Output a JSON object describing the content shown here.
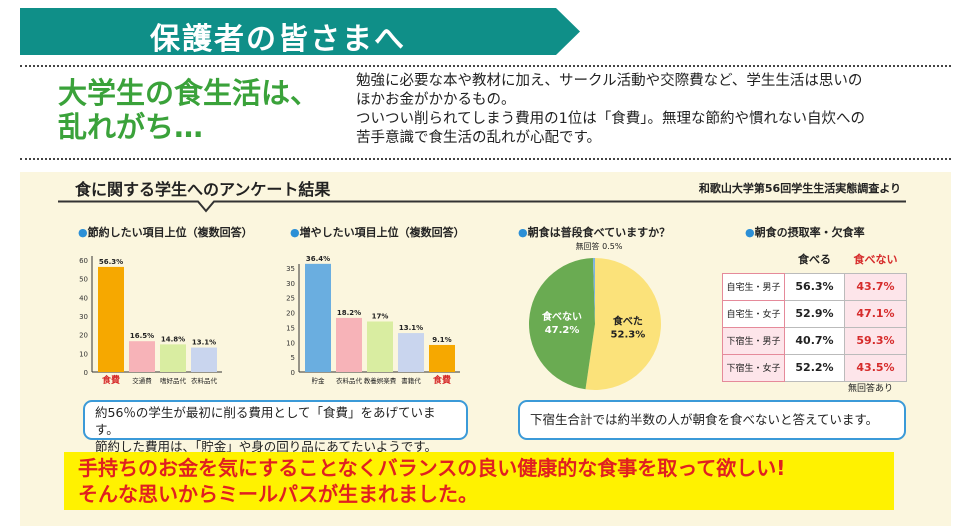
{
  "banner": {
    "title": "保護者の皆さまへ",
    "color": "#0f8f88"
  },
  "headline": {
    "line1": "大学生の食生活は、",
    "line2": "乱れがち…"
  },
  "intro": {
    "line1": "勉強に必要な本や教材に加え、サークル活動や交際費など、学生生活は思いの",
    "line2": "ほかお金がかかるもの。",
    "line3": "ついつい削られてしまう費用の1位は「食費」。無理な節約や慣れない自炊への",
    "line4": "苦手意識で食生活の乱れが心配です。"
  },
  "survey": {
    "title": "食に関する学生へのアンケート結果",
    "source": "和歌山大学第56回学生生活実態調査より"
  },
  "chart_data": [
    {
      "type": "bar",
      "title": "節約したい項目上位（複数回答）",
      "categories": [
        "食費",
        "交通費",
        "嗜好品代",
        "衣料品代"
      ],
      "values": [
        56.3,
        16.5,
        14.8,
        13.1
      ],
      "value_labels": [
        "56.3%",
        "16.5%",
        "14.8%",
        "13.1%"
      ],
      "ylim": [
        0,
        60
      ],
      "yticks": [
        "0",
        "10",
        "20",
        "30",
        "40",
        "50",
        "60"
      ],
      "colors": [
        "#f6a800",
        "#f7b3b8",
        "#d9eda1",
        "#c9d5ee"
      ]
    },
    {
      "type": "bar",
      "title": "増やしたい項目上位（複数回答）",
      "categories": [
        "貯金",
        "衣料品代",
        "教養娯楽費",
        "書籍代",
        "食費"
      ],
      "values": [
        36.4,
        18.2,
        17,
        13.1,
        9.1
      ],
      "value_labels": [
        "36.4%",
        "18.2%",
        "17%",
        "13.1%",
        "9.1%"
      ],
      "ylim": [
        0,
        35
      ],
      "yticks": [
        "0",
        "5",
        "10",
        "15",
        "20",
        "25",
        "30",
        "35"
      ],
      "colors": [
        "#6aaee0",
        "#f7b3b8",
        "#d9eda1",
        "#c9d5ee",
        "#f6a800"
      ]
    },
    {
      "type": "pie",
      "title": "朝食は普段食べていますか？",
      "slices": [
        {
          "label": "食べた",
          "value": 52.3,
          "value_label": "52.3%",
          "color": "#fbe27a"
        },
        {
          "label": "食べない",
          "value": 47.2,
          "value_label": "47.2%",
          "color": "#6aab52"
        },
        {
          "label": "無回答",
          "value": 0.5,
          "value_label": "0.5%",
          "color": "#7fb2e0"
        }
      ]
    },
    {
      "type": "table",
      "title": "朝食の摂取率・欠食率",
      "columns": [
        "",
        "食べる",
        "食べない"
      ],
      "rows": [
        [
          "自宅生・男子",
          "56.3%",
          "43.7%"
        ],
        [
          "自宅生・女子",
          "52.9%",
          "47.1%"
        ],
        [
          "下宿生・男子",
          "40.7%",
          "59.3%"
        ],
        [
          "下宿生・女子",
          "52.2%",
          "43.5%"
        ]
      ],
      "footnote": "無回答あり"
    }
  ],
  "notes": {
    "left_line1": "約56％の学生が最初に削る費用として「食費」をあげています。",
    "left_line2": "節約した費用は、「貯金」や身の回り品にあてたいようです。",
    "right": "下宿生合計では約半数の人が朝食を食べないと答えています。"
  },
  "message": {
    "line1": "手持ちのお金を気にすることなくバランスの良い健康的な食事を取って欲しい!",
    "line2": "そんな思いからミールパスが生まれました。"
  }
}
